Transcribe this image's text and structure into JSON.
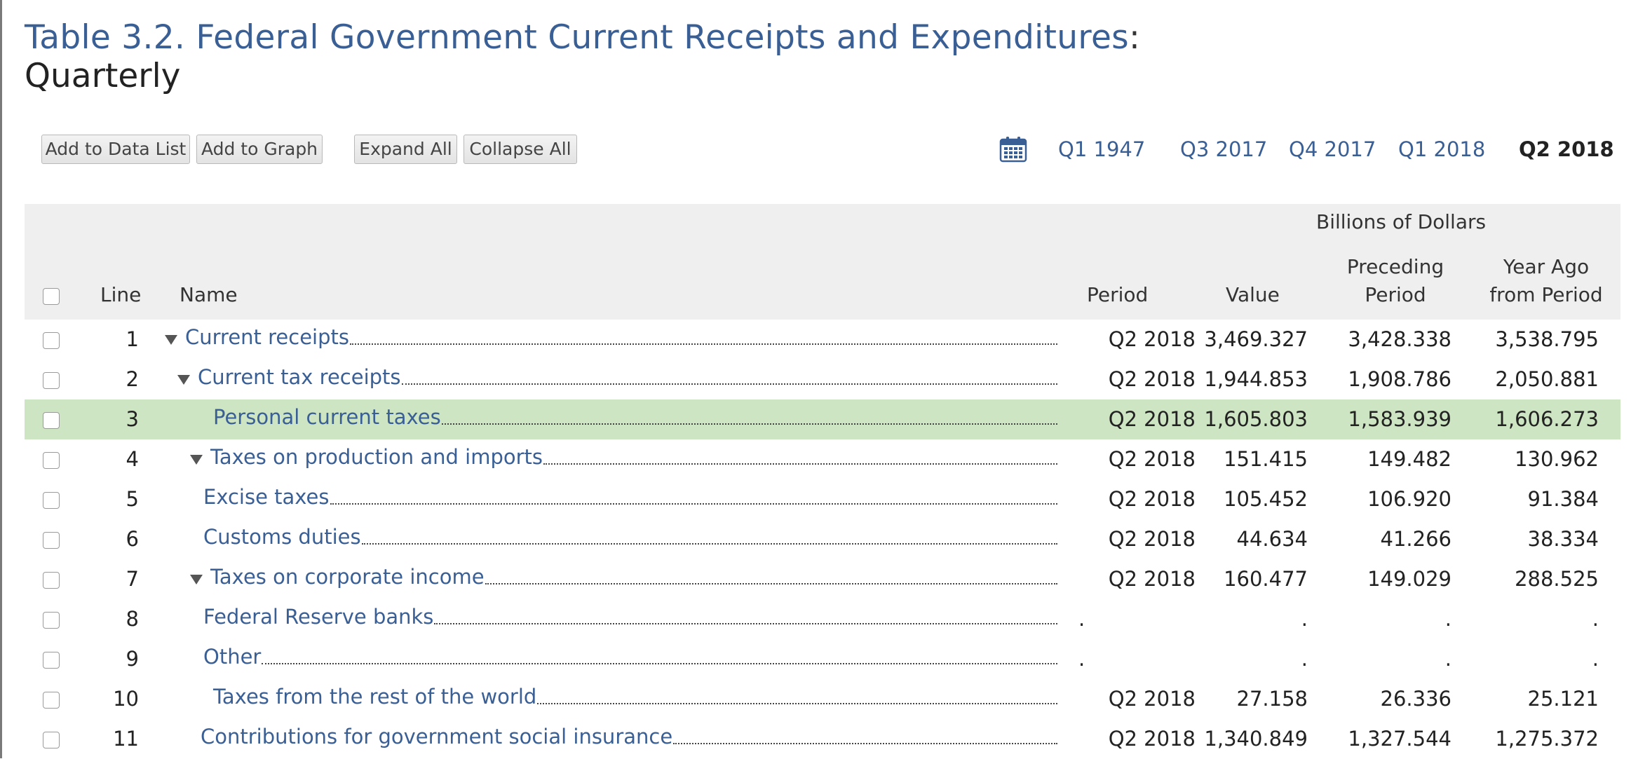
{
  "title": {
    "main": "Table 3.2. Federal Government Current Receipts and Expenditures",
    "colon": ":",
    "sub": "Quarterly"
  },
  "toolbar": {
    "add_to_data_list": "Add to Data List",
    "add_to_graph": "Add to Graph",
    "expand_all": "Expand All",
    "collapse_all": "Collapse All"
  },
  "periods": {
    "q1_1947": "Q1 1947",
    "q3_2017": "Q3 2017",
    "q4_2017": "Q4 2017",
    "q1_2018": "Q1 2018",
    "q2_2018": "Q2 2018",
    "active": "Q2 2018"
  },
  "icons": {
    "calendar": "calendar-icon",
    "expand_toggle": "triangle-down-icon"
  },
  "colors": {
    "link": "#3a5f95",
    "highlight_row": "#cde5c2",
    "header_bg": "#efefef"
  },
  "table": {
    "units": "Billions of Dollars",
    "headers": {
      "line": "Line",
      "name": "Name",
      "period": "Period",
      "value": "Value",
      "preceding_1": "Preceding",
      "preceding_2": "Period",
      "year_ago_1": "Year Ago",
      "year_ago_2": "from Period"
    },
    "rows": [
      {
        "line": "1",
        "name": "Current receipts",
        "level": 0,
        "expandable": true,
        "highlight": false,
        "period": "Q2 2018",
        "value": "3,469.327",
        "preceding": "3,428.338",
        "year_ago": "3,538.795"
      },
      {
        "line": "2",
        "name": "Current tax receipts",
        "level": 1,
        "expandable": true,
        "highlight": false,
        "period": "Q2 2018",
        "value": "1,944.853",
        "preceding": "1,908.786",
        "year_ago": "2,050.881"
      },
      {
        "line": "3",
        "name": "Personal current taxes",
        "level": 2,
        "expandable": false,
        "highlight": true,
        "period": "Q2 2018",
        "value": "1,605.803",
        "preceding": "1,583.939",
        "year_ago": "1,606.273"
      },
      {
        "line": "4",
        "name": "Taxes on production and imports",
        "level": 2,
        "expandable": true,
        "highlight": false,
        "period": "Q2 2018",
        "value": "151.415",
        "preceding": "149.482",
        "year_ago": "130.962"
      },
      {
        "line": "5",
        "name": "Excise taxes",
        "level": 3,
        "expandable": false,
        "highlight": false,
        "period": "Q2 2018",
        "value": "105.452",
        "preceding": "106.920",
        "year_ago": "91.384"
      },
      {
        "line": "6",
        "name": "Customs duties",
        "level": 3,
        "expandable": false,
        "highlight": false,
        "period": "Q2 2018",
        "value": "44.634",
        "preceding": "41.266",
        "year_ago": "38.334"
      },
      {
        "line": "7",
        "name": "Taxes on corporate income",
        "level": 2,
        "expandable": true,
        "highlight": false,
        "period": "Q2 2018",
        "value": "160.477",
        "preceding": "149.029",
        "year_ago": "288.525"
      },
      {
        "line": "8",
        "name": "Federal Reserve banks",
        "level": 3,
        "expandable": false,
        "highlight": false,
        "period": ".",
        "value": ".",
        "preceding": ".",
        "year_ago": "."
      },
      {
        "line": "9",
        "name": "Other",
        "level": 3,
        "expandable": false,
        "highlight": false,
        "period": ".",
        "value": ".",
        "preceding": ".",
        "year_ago": "."
      },
      {
        "line": "10",
        "name": "Taxes from the rest of the world",
        "level": 2,
        "expandable": false,
        "highlight": false,
        "period": "Q2 2018",
        "value": "27.158",
        "preceding": "26.336",
        "year_ago": "25.121"
      },
      {
        "line": "11",
        "name": "Contributions for government social insurance",
        "level": 1,
        "expandable": false,
        "highlight": false,
        "period": "Q2 2018",
        "value": "1,340.849",
        "preceding": "1,327.544",
        "year_ago": "1,275.372"
      }
    ]
  }
}
